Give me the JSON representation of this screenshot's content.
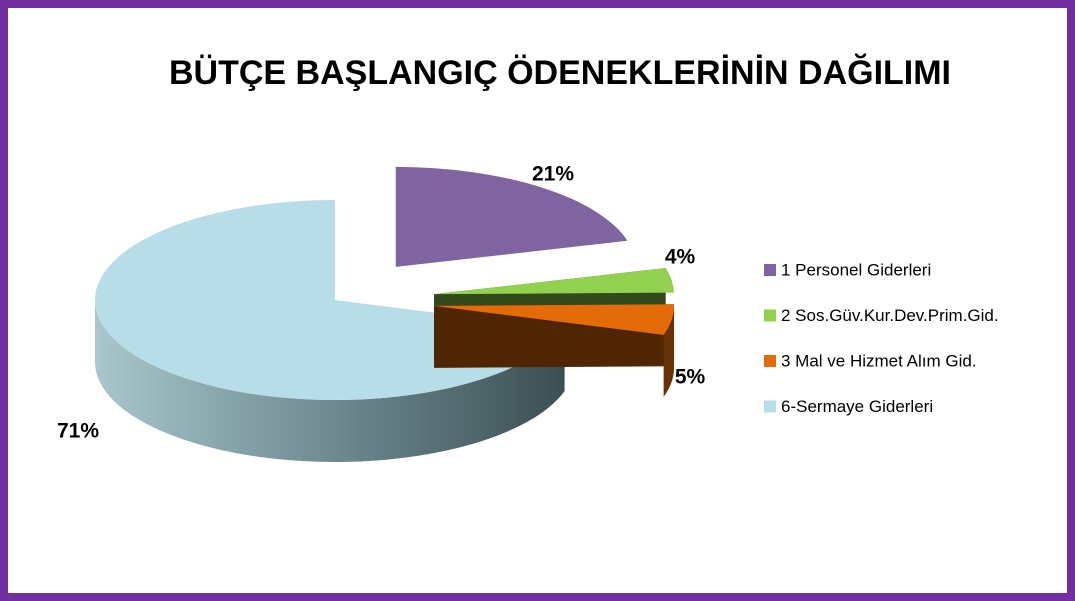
{
  "chart_data": {
    "type": "pie",
    "title": "BÜTÇE BAŞLANGIÇ ÖDENEKLERİNİN DAĞILIMI",
    "categories": [
      "1 Personel Giderleri",
      "2 Sos.Güv.Kur.Dev.Prim.Gid.",
      "3 Mal ve Hizmet Alım Gid.",
      "6-Sermaye Giderleri"
    ],
    "values": [
      21,
      4,
      5,
      71
    ],
    "value_labels": [
      "21%",
      "4%",
      "5%",
      "71%"
    ],
    "colors": [
      "#8064a2",
      "#92d050",
      "#e36c09",
      "#b7dde8"
    ],
    "legend": "right"
  }
}
